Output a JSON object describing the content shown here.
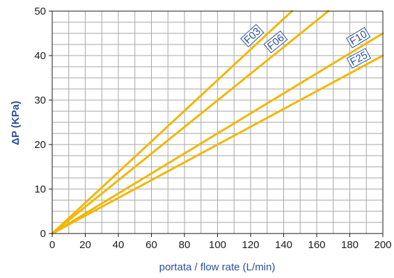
{
  "chart_data": {
    "type": "line",
    "title": "",
    "xlabel": "portata / flow rate (L/min)",
    "ylabel": "ΔP (KPa)",
    "xlim": [
      0,
      200
    ],
    "ylim": [
      0,
      50
    ],
    "x_ticks": [
      0,
      20,
      40,
      60,
      80,
      100,
      120,
      140,
      160,
      180,
      200
    ],
    "y_ticks": [
      0,
      10,
      20,
      30,
      40,
      50
    ],
    "x_tick_labels": [
      "0",
      "20",
      "40",
      "60",
      "80",
      "100",
      "120",
      "140",
      "160",
      "180",
      "200"
    ],
    "y_tick_labels": [
      "0",
      "10",
      "20",
      "30",
      "40",
      "50"
    ],
    "grid": true,
    "series": [
      {
        "name": "F03",
        "x": [
          0,
          145
        ],
        "y": [
          0,
          50
        ]
      },
      {
        "name": "F06",
        "x": [
          0,
          167
        ],
        "y": [
          0,
          50
        ]
      },
      {
        "name": "F10",
        "x": [
          0,
          200
        ],
        "y": [
          0,
          45
        ]
      },
      {
        "name": "F25",
        "x": [
          0,
          200
        ],
        "y": [
          0,
          40
        ]
      }
    ],
    "line_color": "#f2b705",
    "grid_color": "#a6a6a6",
    "text_color": "#2b4f9e"
  }
}
